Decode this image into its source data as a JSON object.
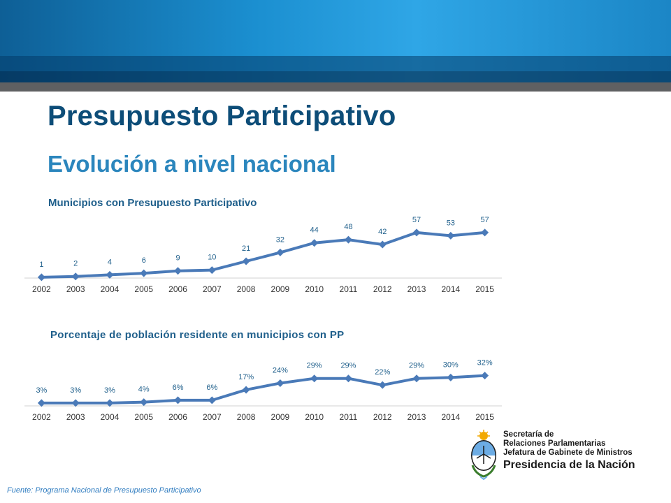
{
  "header": {
    "title": "Presupuesto Participativo",
    "subtitle": "Evolución a nivel nacional"
  },
  "colors": {
    "banner": "#1b8fd0",
    "title": "#0d4d78",
    "subtitle": "#2b86bd",
    "series": "#4a7ab8",
    "label": "#1f5f8b"
  },
  "chart_data": [
    {
      "type": "line",
      "title": "Municipios con Presupuesto Participativo",
      "x": [
        "2002",
        "2003",
        "2004",
        "2005",
        "2006",
        "2007",
        "2008",
        "2009",
        "2010",
        "2011",
        "2012",
        "2013",
        "2014",
        "2015"
      ],
      "series": [
        {
          "values": [
            1,
            2,
            4,
            6,
            9,
            10,
            21,
            32,
            44,
            48,
            42,
            57,
            53,
            57
          ]
        }
      ],
      "data_labels": [
        "1",
        "2",
        "4",
        "6",
        "9",
        "10",
        "21",
        "32",
        "44",
        "48",
        "42",
        "57",
        "53",
        "57"
      ],
      "marker": "diamond",
      "ylim": [
        0,
        70
      ],
      "grid": false
    },
    {
      "type": "line",
      "title": "Porcentaje de población residente en municipios con PP",
      "x": [
        "2002",
        "2003",
        "2004",
        "2005",
        "2006",
        "2007",
        "2008",
        "2009",
        "2010",
        "2011",
        "2012",
        "2013",
        "2014",
        "2015"
      ],
      "series": [
        {
          "values": [
            3,
            3,
            3,
            4,
            6,
            6,
            17,
            24,
            29,
            29,
            22,
            29,
            30,
            32
          ]
        }
      ],
      "data_labels": [
        "3%",
        "3%",
        "3%",
        "4%",
        "6%",
        "6%",
        "17%",
        "24%",
        "29%",
        "29%",
        "22%",
        "29%",
        "30%",
        "32%"
      ],
      "marker": "diamond",
      "ylim": [
        0,
        45
      ],
      "grid": false
    }
  ],
  "footer": {
    "source": "Fuente: Programa Nacional de Presupuesto Participativo"
  },
  "logo": {
    "line1": "Secretaría de",
    "line2": "Relaciones Parlamentarias",
    "line3": "Jefatura de Gabinete de Ministros",
    "line4": "Presidencia de la Nación"
  }
}
